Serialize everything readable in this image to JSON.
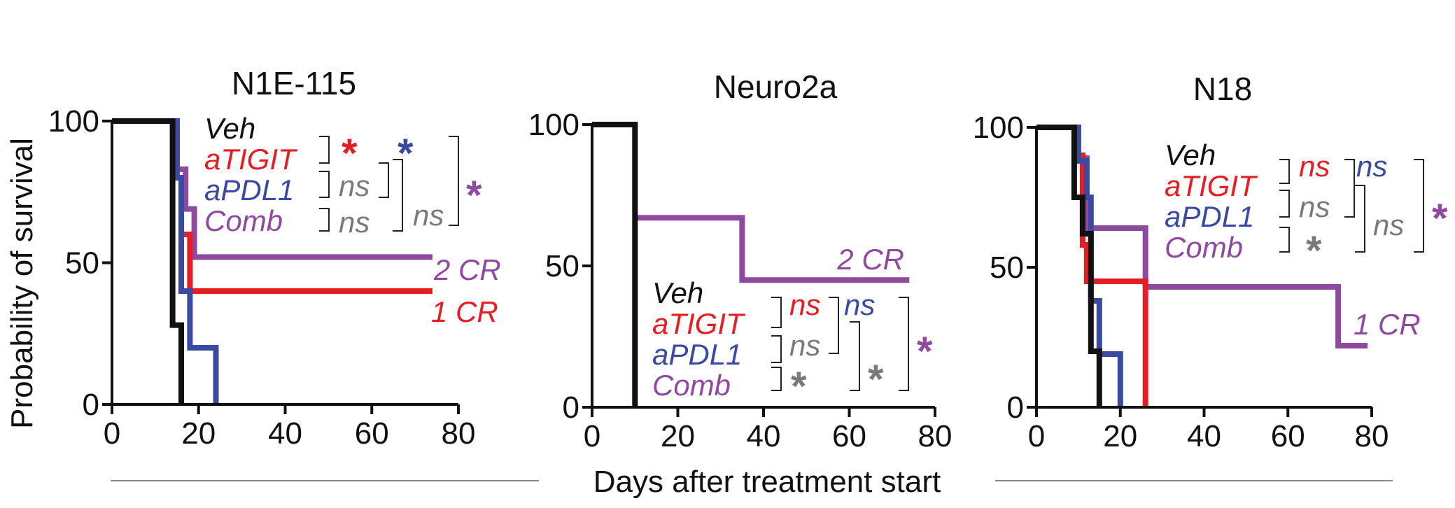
{
  "figure": {
    "xlabel": "Days after treatment start",
    "ylabel": "Probability of survival"
  },
  "chart_data": [
    {
      "type": "line",
      "title": "N1E-115",
      "xlim": [
        0,
        80
      ],
      "ylim": [
        0,
        100
      ],
      "xticks": [
        0,
        20,
        40,
        60,
        80
      ],
      "yticks": [
        0,
        50,
        100
      ],
      "series": [
        {
          "name": "Veh",
          "color": "#111111",
          "points": [
            [
              0,
              100
            ],
            [
              14,
              100
            ],
            [
              14,
              28
            ],
            [
              16,
              28
            ],
            [
              16,
              0
            ]
          ]
        },
        {
          "name": "aTIGIT",
          "color": "#e31e24",
          "points": [
            [
              0,
              100
            ],
            [
              15,
              100
            ],
            [
              15,
              80
            ],
            [
              16,
              80
            ],
            [
              16,
              60
            ],
            [
              18,
              60
            ],
            [
              18,
              40
            ],
            [
              74,
              40
            ]
          ]
        },
        {
          "name": "aPDL1",
          "color": "#3a4aa0",
          "points": [
            [
              0,
              100
            ],
            [
              15,
              100
            ],
            [
              15,
              80
            ],
            [
              16,
              80
            ],
            [
              16,
              40
            ],
            [
              18,
              40
            ],
            [
              18,
              20
            ],
            [
              24,
              20
            ],
            [
              24,
              0
            ]
          ]
        },
        {
          "name": "Comb",
          "color": "#8e4a9e",
          "points": [
            [
              0,
              100
            ],
            [
              15,
              100
            ],
            [
              15,
              83
            ],
            [
              17,
              83
            ],
            [
              17,
              69
            ],
            [
              19,
              69
            ],
            [
              19,
              52
            ],
            [
              74,
              52
            ]
          ]
        }
      ],
      "legend": [
        "Veh",
        "aTIGIT",
        "aPDL1",
        "Comb"
      ],
      "annotations": [
        {
          "text": "2 CR",
          "color": "#8e4a9e"
        },
        {
          "text": "1 CR",
          "color": "#e31e24"
        }
      ],
      "significance": [
        {
          "text": "*",
          "color": "#e31e24"
        },
        {
          "text": "ns",
          "color": "#7a7a7a"
        },
        {
          "text": "ns",
          "color": "#7a7a7a"
        },
        {
          "text": "*",
          "color": "#3a4aa0"
        },
        {
          "text": "ns",
          "color": "#7a7a7a"
        },
        {
          "text": "*",
          "color": "#8e4a9e"
        }
      ]
    },
    {
      "type": "line",
      "title": "Neuro2a",
      "xlim": [
        0,
        80
      ],
      "ylim": [
        0,
        100
      ],
      "xticks": [
        0,
        20,
        40,
        60,
        80
      ],
      "yticks": [
        0,
        50,
        100
      ],
      "series": [
        {
          "name": "Veh",
          "color": "#111111",
          "points": [
            [
              0,
              100
            ],
            [
              10,
              100
            ],
            [
              10,
              0
            ]
          ]
        },
        {
          "name": "Comb",
          "color": "#8e4a9e",
          "points": [
            [
              10,
              67
            ],
            [
              35,
              67
            ],
            [
              35,
              45
            ],
            [
              74,
              45
            ]
          ]
        }
      ],
      "legend": [
        "Veh",
        "aTIGIT",
        "aPDL1",
        "Comb"
      ],
      "annotations": [
        {
          "text": "2 CR",
          "color": "#8e4a9e"
        }
      ],
      "significance": [
        {
          "text": "ns",
          "color": "#e31e24"
        },
        {
          "text": "ns",
          "color": "#7a7a7a"
        },
        {
          "text": "*",
          "color": "#7a7a7a"
        },
        {
          "text": "ns",
          "color": "#3a4aa0"
        },
        {
          "text": "*",
          "color": "#7a7a7a"
        },
        {
          "text": "*",
          "color": "#8e4a9e"
        }
      ]
    },
    {
      "type": "line",
      "title": "N18",
      "xlim": [
        0,
        80
      ],
      "ylim": [
        0,
        100
      ],
      "xticks": [
        0,
        20,
        40,
        60,
        80
      ],
      "yticks": [
        0,
        50,
        100
      ],
      "series": [
        {
          "name": "Veh",
          "color": "#111111",
          "points": [
            [
              0,
              100
            ],
            [
              9,
              100
            ],
            [
              9,
              75
            ],
            [
              11,
              75
            ],
            [
              11,
              62
            ],
            [
              13,
              62
            ],
            [
              13,
              20
            ],
            [
              15,
              20
            ],
            [
              15,
              0
            ]
          ]
        },
        {
          "name": "aTIGIT",
          "color": "#e31e24",
          "points": [
            [
              0,
              100
            ],
            [
              10,
              100
            ],
            [
              10,
              90
            ],
            [
              11,
              90
            ],
            [
              11,
              58
            ],
            [
              12,
              58
            ],
            [
              12,
              45
            ],
            [
              26,
              45
            ],
            [
              26,
              0
            ]
          ]
        },
        {
          "name": "aPDL1",
          "color": "#3a4aa0",
          "points": [
            [
              0,
              100
            ],
            [
              10,
              100
            ],
            [
              10,
              88
            ],
            [
              12,
              88
            ],
            [
              12,
              75
            ],
            [
              13,
              75
            ],
            [
              13,
              38
            ],
            [
              15,
              38
            ],
            [
              15,
              19
            ],
            [
              20,
              19
            ],
            [
              20,
              0
            ]
          ]
        },
        {
          "name": "Comb",
          "color": "#8e4a9e",
          "points": [
            [
              0,
              100
            ],
            [
              10,
              100
            ],
            [
              10,
              89
            ],
            [
              12,
              89
            ],
            [
              12,
              64
            ],
            [
              26,
              64
            ],
            [
              26,
              43
            ],
            [
              72,
              43
            ],
            [
              72,
              22
            ],
            [
              79,
              22
            ]
          ]
        }
      ],
      "legend": [
        "Veh",
        "aTIGIT",
        "aPDL1",
        "Comb"
      ],
      "annotations": [
        {
          "text": "1 CR",
          "color": "#8e4a9e"
        }
      ],
      "significance": [
        {
          "text": "ns",
          "color": "#e31e24"
        },
        {
          "text": "ns",
          "color": "#7a7a7a"
        },
        {
          "text": "*",
          "color": "#7a7a7a"
        },
        {
          "text": "ns",
          "color": "#3a4aa0"
        },
        {
          "text": "ns",
          "color": "#7a7a7a"
        },
        {
          "text": "*",
          "color": "#8e4a9e"
        }
      ]
    }
  ]
}
